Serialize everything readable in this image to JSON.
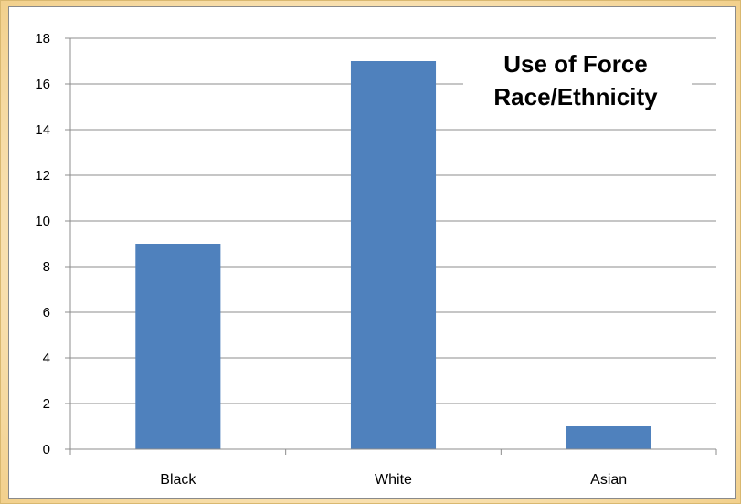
{
  "chart_data": {
    "type": "bar",
    "title_lines": [
      "Use of Force",
      "Race/Ethnicity"
    ],
    "categories": [
      "Black",
      "White",
      "Asian"
    ],
    "values": [
      9,
      17,
      1
    ],
    "ylim": [
      0,
      18
    ],
    "yticks": [
      0,
      2,
      4,
      6,
      8,
      10,
      12,
      14,
      16,
      18
    ],
    "grid": true,
    "legend": "none",
    "bar_color": "#4f81bd"
  }
}
